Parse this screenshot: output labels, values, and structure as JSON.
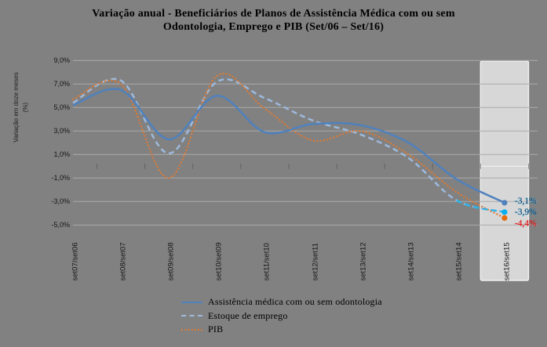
{
  "title": {
    "line1": "Variação anual - Beneficiários de Planos de Assistência Médica com ou sem",
    "line2": "Odontologia, Emprego e PIB (Set/06 – Set/16)"
  },
  "colors": {
    "background": "#818181",
    "gridline": "#ABABAB",
    "band_fill": "#D7D7D7",
    "band_border": "#F0F0F0",
    "zero_line_in_band": "#EDEDED",
    "tick_mark": "#4A4A4A",
    "cyan_end_segment": "#2BB4EA"
  },
  "chart_data": {
    "type": "line",
    "title": "Variação anual - Beneficiários de Planos de Assistência Médica com ou sem Odontologia, Emprego e PIB (Set/06 – Set/16)",
    "xlabel": "",
    "ylabel": "Variação em doze meses (%)",
    "ylim": [
      -5,
      9
    ],
    "grid": true,
    "legend_position": "bottom",
    "y_ticks": [
      9,
      7,
      5,
      3,
      1,
      -1,
      -3,
      -5
    ],
    "y_tick_labels": [
      "9,0%",
      "7,0%",
      "5,0%",
      "3,0%",
      "1,0%",
      "-1,0%",
      "-3,0%",
      "-5,0%"
    ],
    "categories": [
      "set07/set06",
      "set08/set07",
      "set09/set08",
      "set10/set09",
      "set11/set10",
      "set12/set11",
      "set13/set12",
      "set14/set13",
      "set15/set14",
      "set16/set15"
    ],
    "highlight_band_category": "set16/set15",
    "series": [
      {
        "name": "Assistência médica com ou sem odontologia",
        "style": "solid",
        "color": "#4F81BD",
        "marker_color": "#4F81BD",
        "end_label": "-3,1%",
        "end_label_color": "#1F3864",
        "values": [
          5.2,
          6.5,
          2.3,
          6.0,
          2.9,
          3.6,
          3.5,
          2.0,
          -1.1,
          -3.1
        ]
      },
      {
        "name": "Estoque de emprego",
        "style": "dashed",
        "color": "#9DB9DC",
        "marker_color": "#00B0F0",
        "end_label": "-3,9%",
        "end_label_color": "#1F3864",
        "values": [
          5.4,
          7.3,
          1.1,
          7.2,
          5.8,
          3.9,
          2.7,
          0.7,
          -2.9,
          -3.9
        ]
      },
      {
        "name": "PIB",
        "style": "dotted",
        "color": "#DE7A33",
        "marker_color": "#E46C0A",
        "end_label": "-4,4%",
        "end_label_color": "#F01818",
        "values": [
          5.7,
          7.0,
          -1.0,
          7.7,
          4.9,
          2.2,
          3.0,
          1.0,
          -2.2,
          -4.4
        ]
      }
    ]
  }
}
